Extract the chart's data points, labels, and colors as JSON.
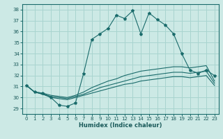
{
  "xlabel": "Humidex (Indice chaleur)",
  "xlim": [
    -0.5,
    23.5
  ],
  "ylim": [
    28.5,
    38.5
  ],
  "yticks": [
    29,
    30,
    31,
    32,
    33,
    34,
    35,
    36,
    37,
    38
  ],
  "xticks": [
    0,
    1,
    2,
    3,
    4,
    5,
    6,
    7,
    8,
    9,
    10,
    11,
    12,
    13,
    14,
    15,
    16,
    17,
    18,
    19,
    20,
    21,
    22,
    23
  ],
  "bg_color": "#cce9e5",
  "grid_color": "#a8d4cf",
  "line_color": "#1a6b6b",
  "series_main": [
    31.1,
    30.5,
    30.4,
    30.0,
    29.3,
    29.2,
    29.5,
    32.2,
    35.3,
    35.8,
    36.3,
    37.5,
    37.2,
    37.9,
    35.8,
    37.7,
    37.1,
    36.6,
    35.8,
    34.0,
    32.5,
    32.2,
    32.5,
    32.0
  ],
  "series_top": [
    31.1,
    30.5,
    30.4,
    30.2,
    30.1,
    30.0,
    30.2,
    30.5,
    30.9,
    31.2,
    31.5,
    31.7,
    32.0,
    32.2,
    32.4,
    32.5,
    32.6,
    32.7,
    32.8,
    32.8,
    32.7,
    32.8,
    32.9,
    31.5
  ],
  "series_mid": [
    31.1,
    30.5,
    30.3,
    30.1,
    30.0,
    29.9,
    30.1,
    30.3,
    30.6,
    30.9,
    31.1,
    31.3,
    31.5,
    31.7,
    31.9,
    32.0,
    32.1,
    32.2,
    32.3,
    32.3,
    32.2,
    32.3,
    32.4,
    31.3
  ],
  "series_bot": [
    31.1,
    30.5,
    30.3,
    30.0,
    29.9,
    29.8,
    30.0,
    30.2,
    30.4,
    30.6,
    30.8,
    31.0,
    31.2,
    31.3,
    31.5,
    31.6,
    31.7,
    31.8,
    31.9,
    31.9,
    31.8,
    31.9,
    32.0,
    31.1
  ]
}
